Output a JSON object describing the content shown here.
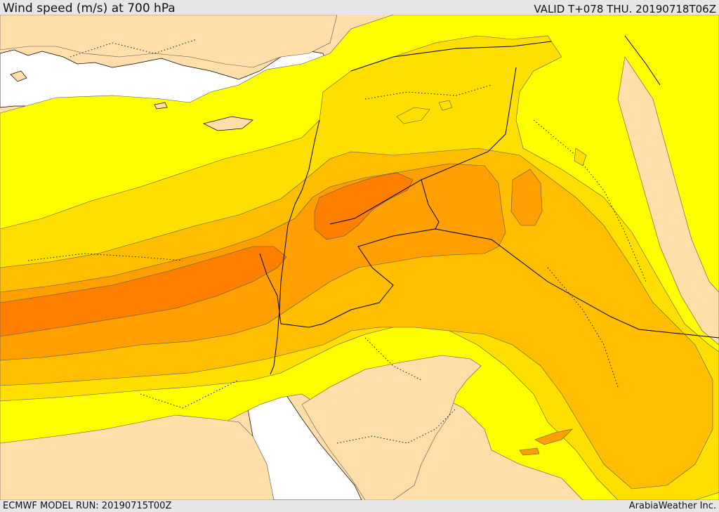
{
  "header": {
    "title": "Wind speed (m/s) at 700 hPa",
    "valid": "VALID T+078 THU. 20190718T06Z"
  },
  "footer": {
    "model_run": "ECMWF MODEL RUN: 20190715T00Z",
    "credit": "ArabiaWeather Inc."
  },
  "colors": {
    "sea": "#ffffff",
    "band_lowest": "#ffdeaa",
    "band_low": "#ffff00",
    "band_mid": "#ffdf00",
    "band_high": "#ffbf00",
    "band_higher": "#ff9f00",
    "band_max": "#ff7f00"
  }
}
